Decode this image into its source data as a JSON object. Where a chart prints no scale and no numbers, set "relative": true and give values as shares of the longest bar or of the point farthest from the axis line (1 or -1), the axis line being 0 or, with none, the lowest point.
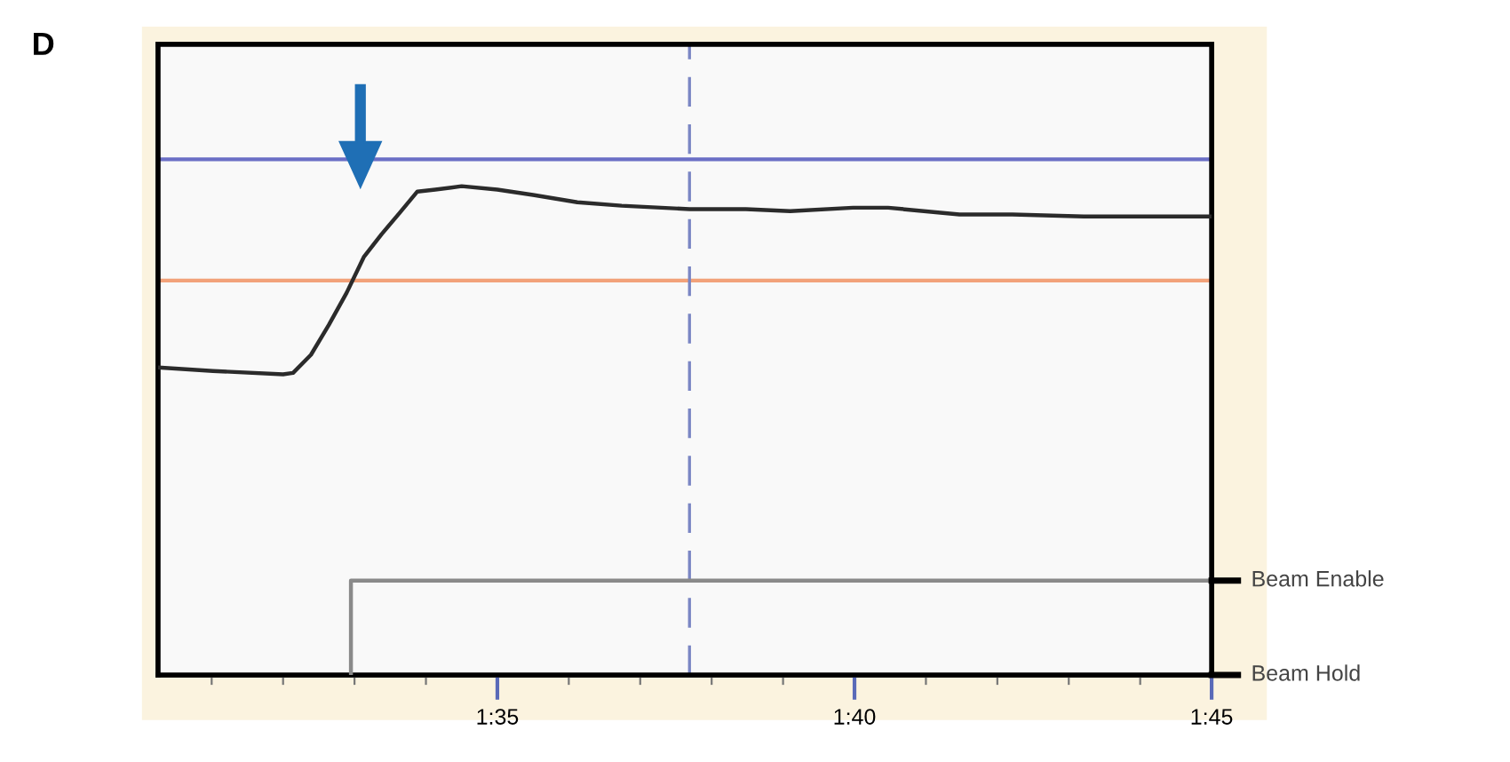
{
  "chart_data": {
    "type": "line",
    "title": "D",
    "relative": true,
    "xlim": [
      90.25,
      105
    ],
    "xticks": [
      {
        "value": 91,
        "label": null
      },
      {
        "value": 92,
        "label": null
      },
      {
        "value": 93,
        "label": null
      },
      {
        "value": 94,
        "label": null
      },
      {
        "value": 95,
        "label": "1:35"
      },
      {
        "value": 96,
        "label": null
      },
      {
        "value": 97,
        "label": null
      },
      {
        "value": 98,
        "label": null
      },
      {
        "value": 99,
        "label": null
      },
      {
        "value": 100,
        "label": "1:40"
      },
      {
        "value": 101,
        "label": null
      },
      {
        "value": 102,
        "label": null
      },
      {
        "value": 103,
        "label": null
      },
      {
        "value": 104,
        "label": null
      },
      {
        "value": 105,
        "label": "1:45"
      }
    ],
    "annotations": [
      "Beam Enable",
      "Beam Hold"
    ],
    "tick_labels": "x",
    "series": [
      {
        "color": "#2b2b2b",
        "x": [
          90.25,
          91.02,
          92.0,
          92.14,
          92.39,
          92.64,
          92.89,
          93.13,
          93.38,
          93.63,
          93.88,
          94.13,
          94.5,
          95.0,
          95.5,
          96.12,
          96.74,
          97.69,
          98.48,
          99.1,
          99.98,
          100.47,
          101.47,
          102.21,
          103.21,
          105
        ],
        "values": [
          0.629,
          0.622,
          0.615,
          0.618,
          0.655,
          0.716,
          0.782,
          0.855,
          0.902,
          0.945,
          0.989,
          0.993,
          1.0,
          0.993,
          0.982,
          0.967,
          0.96,
          0.953,
          0.953,
          0.949,
          0.956,
          0.956,
          0.942,
          0.942,
          0.938,
          0.938
        ]
      },
      {
        "color": "#8a8a8a",
        "x": [
          92.95,
          92.95,
          105
        ],
        "values": [
          0,
          0.193,
          0.193
        ]
      }
    ],
    "ref_lines": [
      {
        "axis": "y",
        "value": 1.055,
        "color": "#6b6fc6",
        "line_style": "solid"
      },
      {
        "axis": "y",
        "value": 0.807,
        "color": "#f2a27a",
        "line_style": "solid"
      },
      {
        "axis": "x",
        "value": 97.69,
        "color": "#7a86c4",
        "line_style": "dashed"
      }
    ],
    "grid": false,
    "legend": false,
    "marker": "none",
    "line_style": "solid"
  }
}
